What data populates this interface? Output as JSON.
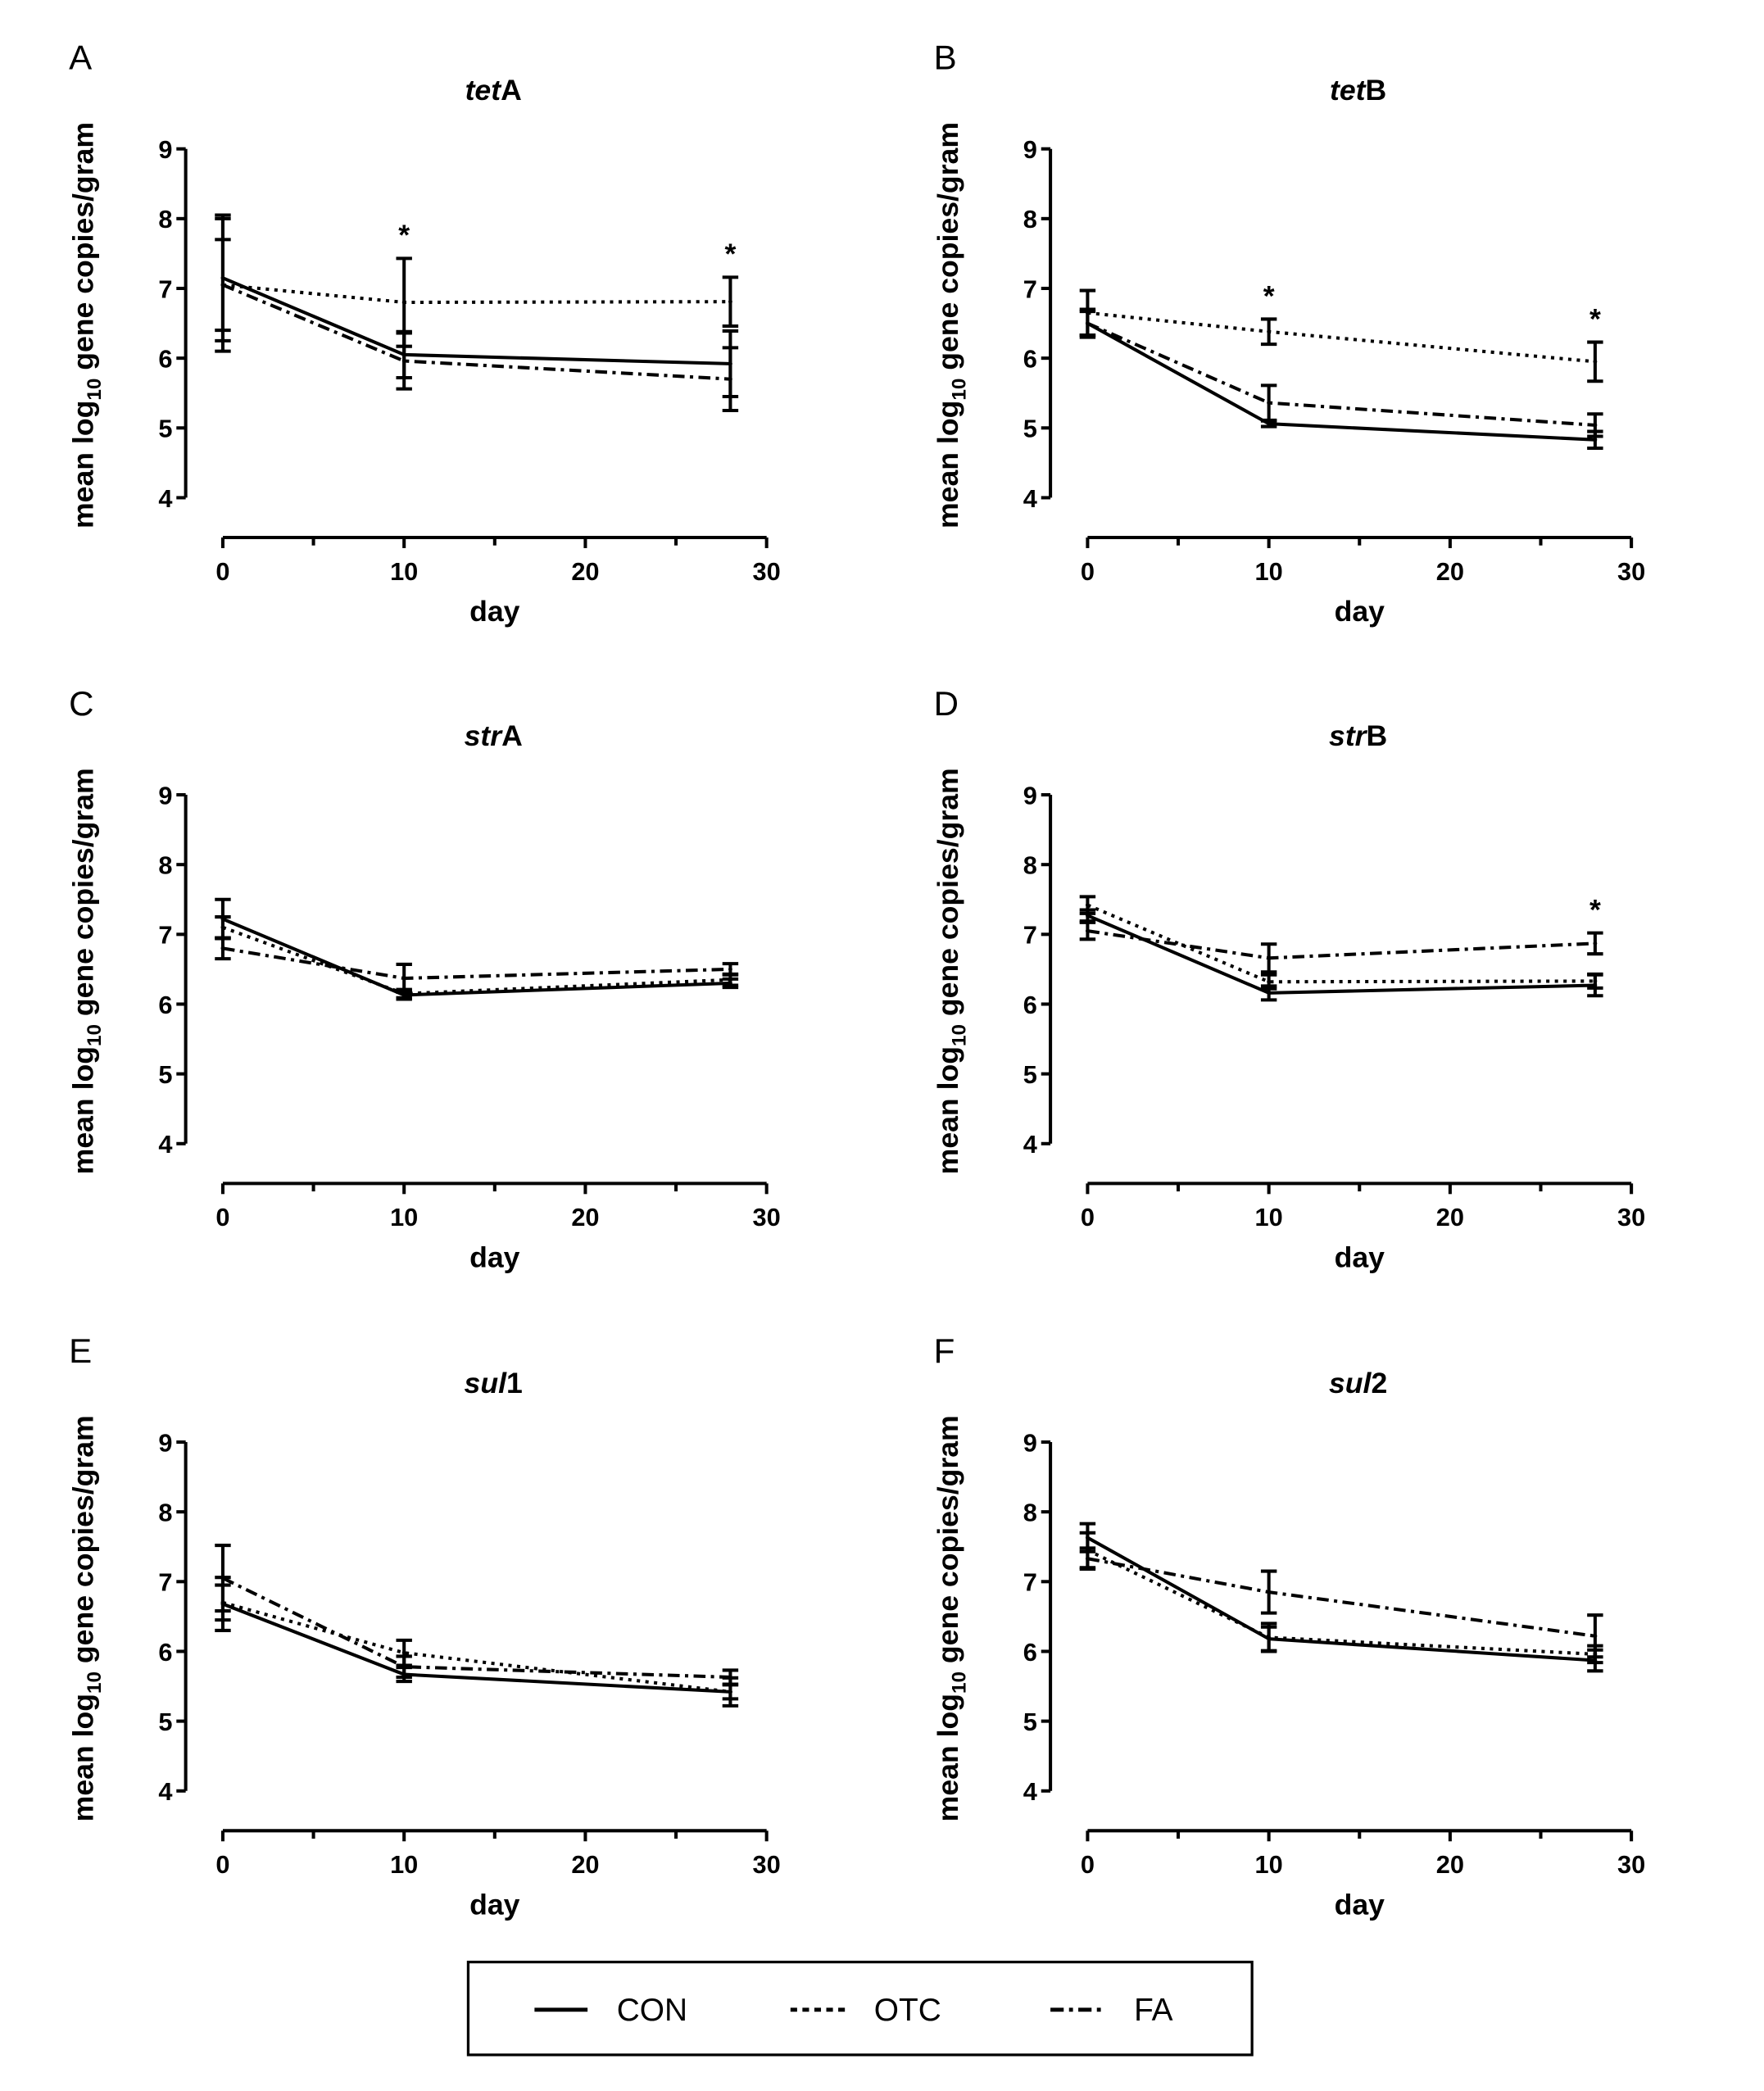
{
  "chart_data": {
    "type": "line",
    "legend": {
      "placement": "bottom-center",
      "entries": [
        "CON",
        "OTC",
        "FA"
      ]
    },
    "series_styles": {
      "CON": "solid",
      "OTC": "dotted",
      "FA": "dash-dot"
    },
    "line_color": "#000000",
    "xlabel": "day",
    "ylabel_parts": [
      "mean log",
      "10",
      " gene copies/gram"
    ],
    "xlim": [
      0,
      30
    ],
    "ylim": [
      4,
      9
    ],
    "xticks": [
      0,
      10,
      20,
      30
    ],
    "yticks": [
      4,
      5,
      6,
      7,
      8,
      9
    ],
    "grid": false,
    "x": [
      0,
      10,
      28
    ],
    "panels": [
      {
        "letter": "A",
        "title_italic": "tet",
        "title_plain": "A",
        "series": [
          {
            "name": "CON",
            "values": [
              7.15,
              6.05,
              5.92
            ],
            "errors": [
              0.9,
              0.33,
              0.47
            ]
          },
          {
            "name": "OTC",
            "values": [
              7.05,
              6.8,
              6.81
            ],
            "errors": [
              0.95,
              0.63,
              0.35
            ]
          },
          {
            "name": "FA",
            "values": [
              7.05,
              5.96,
              5.7
            ],
            "errors": [
              0.65,
              0.4,
              0.45
            ]
          }
        ],
        "significance": [
          {
            "x": 10,
            "label": "*"
          },
          {
            "x": 28,
            "label": "*"
          }
        ]
      },
      {
        "letter": "B",
        "title_italic": "tet",
        "title_plain": "B",
        "series": [
          {
            "name": "CON",
            "values": [
              6.5,
              5.06,
              4.83
            ],
            "errors": [
              0.17,
              0.04,
              0.12
            ]
          },
          {
            "name": "OTC",
            "values": [
              6.65,
              6.38,
              5.95
            ],
            "errors": [
              0.32,
              0.18,
              0.28
            ]
          },
          {
            "name": "FA",
            "values": [
              6.5,
              5.36,
              5.04
            ],
            "errors": [
              0.2,
              0.25,
              0.16
            ]
          }
        ],
        "significance": [
          {
            "x": 10,
            "label": "*"
          },
          {
            "x": 28,
            "label": "*"
          }
        ]
      },
      {
        "letter": "C",
        "title_italic": "str",
        "title_plain": "A",
        "series": [
          {
            "name": "CON",
            "values": [
              7.22,
              6.13,
              6.3
            ],
            "errors": [
              0.28,
              0.06,
              0.06
            ]
          },
          {
            "name": "OTC",
            "values": [
              7.1,
              6.15,
              6.35
            ],
            "errors": [
              0.15,
              0.06,
              0.08
            ]
          },
          {
            "name": "FA",
            "values": [
              6.8,
              6.37,
              6.5
            ],
            "errors": [
              0.15,
              0.2,
              0.08
            ]
          }
        ],
        "significance": []
      },
      {
        "letter": "D",
        "title_italic": "str",
        "title_plain": "B",
        "series": [
          {
            "name": "CON",
            "values": [
              7.27,
              6.16,
              6.27
            ],
            "errors": [
              0.08,
              0.1,
              0.15
            ]
          },
          {
            "name": "OTC",
            "values": [
              7.42,
              6.32,
              6.33
            ],
            "errors": [
              0.12,
              0.1,
              0.1
            ]
          },
          {
            "name": "FA",
            "values": [
              7.05,
              6.66,
              6.87
            ],
            "errors": [
              0.12,
              0.2,
              0.15
            ]
          }
        ],
        "significance": [
          {
            "x": 28,
            "label": "*"
          }
        ]
      },
      {
        "letter": "E",
        "title_italic": "sul",
        "title_plain": "1",
        "series": [
          {
            "name": "CON",
            "values": [
              6.68,
              5.67,
              5.42
            ],
            "errors": [
              0.38,
              0.1,
              0.2
            ]
          },
          {
            "name": "OTC",
            "values": [
              6.7,
              5.98,
              5.42
            ],
            "errors": [
              0.25,
              0.18,
              0.1
            ]
          },
          {
            "name": "FA",
            "values": [
              7.05,
              5.78,
              5.63
            ],
            "errors": [
              0.47,
              0.15,
              0.1
            ]
          }
        ],
        "significance": []
      },
      {
        "letter": "F",
        "title_italic": "sul",
        "title_plain": "2",
        "series": [
          {
            "name": "CON",
            "values": [
              7.63,
              6.18,
              5.87
            ],
            "errors": [
              0.2,
              0.17,
              0.15
            ]
          },
          {
            "name": "OTC",
            "values": [
              7.45,
              6.2,
              5.96
            ],
            "errors": [
              0.25,
              0.2,
              0.12
            ]
          },
          {
            "name": "FA",
            "values": [
              7.33,
              6.85,
              6.22
            ],
            "errors": [
              0.15,
              0.3,
              0.3
            ]
          }
        ],
        "significance": []
      }
    ]
  }
}
